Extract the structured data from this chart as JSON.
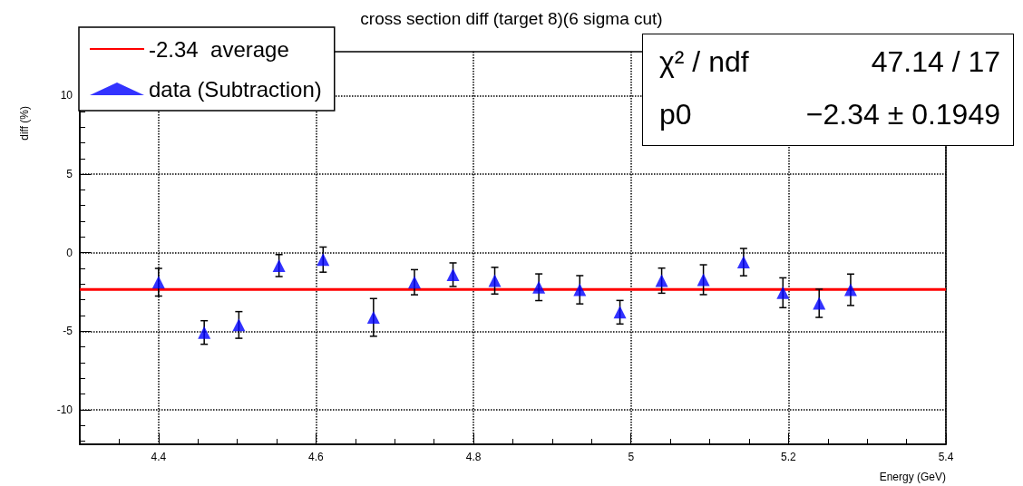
{
  "chart_data": {
    "type": "scatter",
    "title": "cross section diff (target 8)(6 sigma cut)",
    "xlabel": "Energy (GeV)",
    "ylabel": "diff (%)",
    "annotations": [
      "χ² / ndf",
      "47.14 / 17",
      "p0",
      "−2.34 ± 0.1949"
    ],
    "xlim": [
      4.3,
      5.4
    ],
    "xticks": [
      4.4,
      4.6,
      4.8,
      5,
      5.2,
      5.4
    ],
    "ylim": [
      -12.2,
      12.8
    ],
    "yticks": [
      -10,
      -5,
      0,
      5,
      10
    ],
    "grid": true,
    "legend": "top left",
    "series": [
      {
        "name": "-2.34  average",
        "type": "line",
        "color": "#ff0000",
        "x": [
          4.3,
          5.4
        ],
        "values": [
          -2.34,
          -2.34
        ]
      },
      {
        "name": "data (Subtraction)",
        "marker": "triangle",
        "color": "#0000ff",
        "x": [
          4.4,
          4.458,
          4.502,
          4.553,
          4.609,
          4.673,
          4.725,
          4.774,
          4.827,
          4.883,
          4.935,
          4.986,
          5.039,
          5.092,
          5.143,
          5.193,
          5.239,
          5.279
        ],
        "values": [
          -1.88,
          -5.08,
          -4.6,
          -0.82,
          -0.44,
          -4.12,
          -1.88,
          -1.4,
          -1.78,
          -2.2,
          -2.36,
          -3.79,
          -1.78,
          -1.72,
          -0.6,
          -2.55,
          -3.22,
          -2.36
        ],
        "errors": [
          0.88,
          0.75,
          0.85,
          0.7,
          0.8,
          1.2,
          0.8,
          0.75,
          0.85,
          0.85,
          0.9,
          0.75,
          0.8,
          0.95,
          0.87,
          0.95,
          0.9,
          1.0
        ]
      }
    ]
  }
}
